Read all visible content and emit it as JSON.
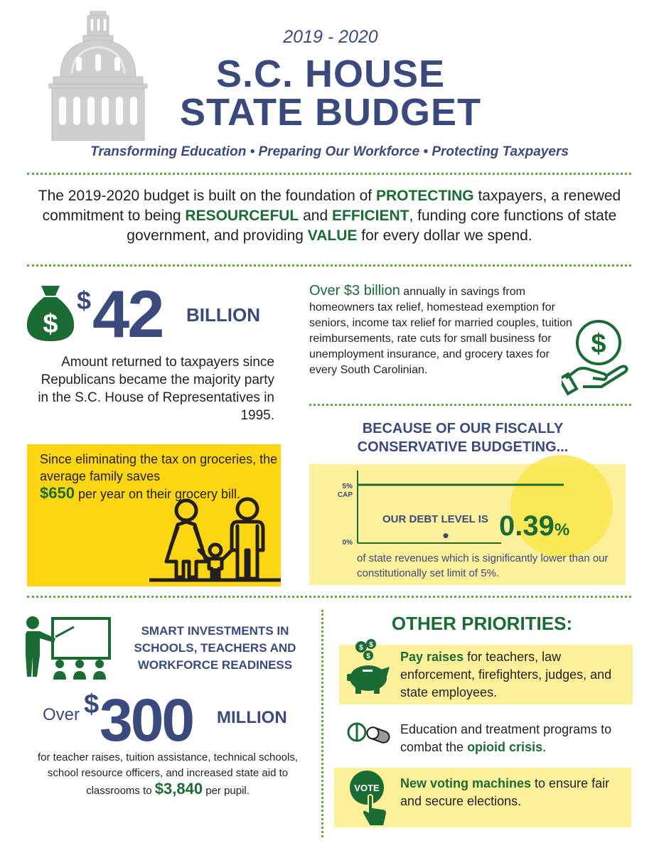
{
  "header": {
    "year": "2019 - 2020",
    "title_line1": "S.C. HOUSE",
    "title_line2": "STATE BUDGET",
    "tagline": "Transforming Education • Preparing Our Workforce • Protecting Taxpayers"
  },
  "intro": {
    "t1": "The 2019-2020 budget is built on the foundation of ",
    "k1": "PROTECTING",
    "t2": " taxpayers, a renewed commitment to being ",
    "k2": "RESOURCEFUL",
    "t3": " and ",
    "k3": "EFFICIENT",
    "t4": ", funding core functions of state government, and providing ",
    "k4": "VALUE",
    "t5": " for every dollar we spend."
  },
  "returned": {
    "dollar": "$",
    "amount": "42",
    "unit": "BILLION",
    "description": "Amount returned to taxpayers since Republicans became the majority party in the S.C. House of Representatives in 1995."
  },
  "savings": {
    "lead": "Over $3 billion",
    "text": " annually in savings from homeowners tax relief, homestead exemption for seniors, income tax relief for married couples, tuition reimbursements, rate cuts for small business for unemployment insurance, and grocery taxes for every South Carolinian."
  },
  "groceries": {
    "t1": "Since eliminating the tax on groceries, the average family saves",
    "amount": "$650",
    "t2": " per year on their grocery bill."
  },
  "debt": {
    "heading": "BECAUSE OF OUR FISCALLY CONSERVATIVE BUDGETING...",
    "cap_label_top": "5%",
    "cap_label_bottom": "CAP",
    "zero_label": "0%",
    "label": "OUR DEBT LEVEL IS",
    "value": "0.39",
    "value_unit": "%",
    "debt_level_percent": 0.39,
    "cap_percent": 5,
    "description": "of state revenues which is significantly lower than our constitutionally set limit of 5%."
  },
  "investments": {
    "heading": "SMART INVESTMENTS IN SCHOOLS, TEACHERS AND WORKFORCE READINESS",
    "over": "Over",
    "dollar": "$",
    "amount": "300",
    "unit": "MILLION",
    "description": "for teacher raises, tuition assistance, technical schools, school resource officers, and increased state aid to classrooms to ",
    "per_pupil_amount": "$3,840",
    "per_pupil_suffix": " per pupil."
  },
  "priorities": {
    "heading": "OTHER PRIORITIES:",
    "items": [
      {
        "bold": "Pay raises",
        "text": " for teachers, law enforcement, firefighters, judges, and state employees.",
        "icon": "piggy-bank-icon"
      },
      {
        "pre": "Education and treatment programs to combat the ",
        "bold": "opioid crisis",
        "post": ".",
        "icon": "pill-icon"
      },
      {
        "bold": "New voting machines",
        "text": " to ensure fair and secure elections.",
        "icon": "vote-button-icon",
        "icon_label": "VOTE"
      }
    ]
  },
  "colors": {
    "navy": "#3b4a7c",
    "green": "#1b6b35",
    "yellow": "#fcd612",
    "light_yellow": "#fcf09a",
    "dots": "#5cae3f"
  }
}
